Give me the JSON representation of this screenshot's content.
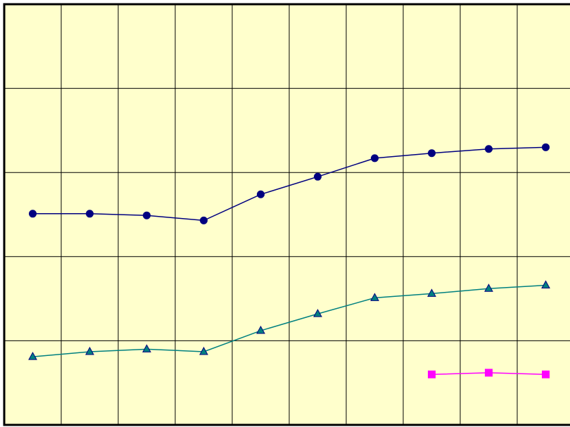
{
  "chart_data": {
    "type": "line",
    "title": "",
    "xlabel": "",
    "ylabel": "",
    "x": [
      1,
      2,
      3,
      4,
      5,
      6,
      7,
      8,
      9,
      10
    ],
    "xlim": [
      0.5,
      10.5
    ],
    "ylim": [
      0,
      5
    ],
    "x_gridlines": [
      1.5,
      2.5,
      3.5,
      4.5,
      5.5,
      6.5,
      7.5,
      8.5,
      9.5
    ],
    "y_gridlines": [
      1,
      2,
      3,
      4
    ],
    "grid": true,
    "legend": "none",
    "colors": {
      "plot_background": "#ffffcc",
      "frame": "#000000",
      "gridline": "#000000"
    },
    "series": [
      {
        "marker": "circle",
        "line_color": "#000080",
        "marker_fill": "#000080",
        "marker_stroke": "#000080",
        "values": [
          2.51,
          2.51,
          2.49,
          2.43,
          2.74,
          2.95,
          3.17,
          3.23,
          3.28,
          3.3
        ]
      },
      {
        "marker": "triangle",
        "line_color": "#008080",
        "marker_fill": "#008080",
        "marker_stroke": "#000080",
        "values": [
          0.81,
          0.87,
          0.9,
          0.87,
          1.12,
          1.32,
          1.51,
          1.56,
          1.62,
          1.66
        ]
      },
      {
        "marker": "square",
        "line_color": "#ff00ff",
        "marker_fill": "#ff00ff",
        "marker_stroke": "#ff00ff",
        "values": [
          null,
          null,
          null,
          null,
          null,
          null,
          null,
          0.6,
          0.62,
          0.6
        ]
      }
    ]
  }
}
